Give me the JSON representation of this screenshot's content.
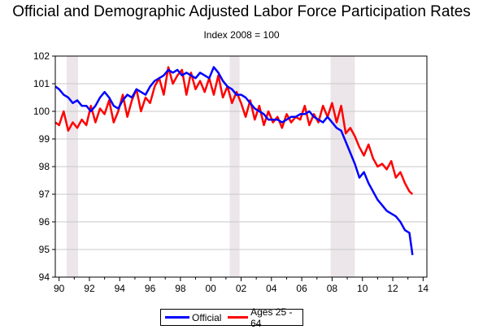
{
  "chart_data": {
    "type": "line",
    "title": "Official and Demographic Adjusted Labor Force Participation Rates",
    "subtitle": "Index 2008 = 100",
    "xlabel": "",
    "ylabel": "",
    "xlim": [
      1989.75,
      2014.25
    ],
    "ylim": [
      94,
      102
    ],
    "x_tick_labels": [
      "90",
      "92",
      "94",
      "96",
      "98",
      "00",
      "02",
      "04",
      "06",
      "08",
      "10",
      "12",
      "14"
    ],
    "x_ticks": [
      1990,
      1992,
      1994,
      1996,
      1998,
      2000,
      2002,
      2004,
      2006,
      2008,
      2010,
      2012,
      2014
    ],
    "y_ticks": [
      94,
      95,
      96,
      97,
      98,
      99,
      100,
      101,
      102
    ],
    "grid": "horizontal",
    "recessions": [
      [
        1990.5,
        1991.25
      ],
      [
        2001.25,
        2001.9
      ],
      [
        2007.9,
        2009.5
      ]
    ],
    "legend_position": "bottom-center",
    "series": [
      {
        "name": "Official",
        "color": "#0000ff",
        "x": [
          1989.75,
          1990.0,
          1990.3,
          1990.6,
          1990.9,
          1991.2,
          1991.5,
          1991.8,
          1992.1,
          1992.4,
          1992.7,
          1993.0,
          1993.3,
          1993.6,
          1993.9,
          1994.2,
          1994.5,
          1994.8,
          1995.1,
          1995.4,
          1995.7,
          1996.0,
          1996.3,
          1996.6,
          1996.9,
          1997.2,
          1997.5,
          1997.8,
          1998.1,
          1998.4,
          1998.7,
          1999.0,
          1999.3,
          1999.6,
          1999.9,
          2000.2,
          2000.5,
          2000.8,
          2001.1,
          2001.4,
          2001.7,
          2002.0,
          2002.3,
          2002.6,
          2002.9,
          2003.2,
          2003.5,
          2003.8,
          2004.1,
          2004.4,
          2004.7,
          2005.0,
          2005.3,
          2005.6,
          2005.9,
          2006.2,
          2006.5,
          2006.8,
          2007.1,
          2007.4,
          2007.7,
          2008.0,
          2008.3,
          2008.6,
          2008.9,
          2009.2,
          2009.5,
          2009.8,
          2010.1,
          2010.4,
          2010.7,
          2011.0,
          2011.3,
          2011.6,
          2011.9,
          2012.2,
          2012.5,
          2012.8,
          2013.1,
          2013.3
        ],
        "y": [
          100.9,
          100.8,
          100.6,
          100.5,
          100.3,
          100.4,
          100.2,
          100.2,
          100.0,
          100.2,
          100.5,
          100.7,
          100.5,
          100.2,
          100.1,
          100.4,
          100.6,
          100.5,
          100.8,
          100.7,
          100.6,
          100.9,
          101.1,
          101.2,
          101.3,
          101.5,
          101.4,
          101.5,
          101.3,
          101.4,
          101.3,
          101.2,
          101.4,
          101.3,
          101.2,
          101.6,
          101.4,
          101.1,
          100.9,
          100.8,
          100.6,
          100.6,
          100.5,
          100.3,
          100.1,
          100.0,
          99.9,
          99.7,
          99.7,
          99.7,
          99.6,
          99.7,
          99.8,
          99.8,
          99.9,
          99.9,
          100.0,
          99.8,
          99.7,
          99.6,
          99.8,
          99.6,
          99.4,
          99.3,
          98.9,
          98.5,
          98.1,
          97.6,
          97.8,
          97.4,
          97.1,
          96.8,
          96.6,
          96.4,
          96.3,
          96.2,
          96.0,
          95.7,
          95.6,
          94.8
        ]
      },
      {
        "name": "Ages 25 - 64",
        "color": "#ff0000",
        "x": [
          1989.75,
          1990.0,
          1990.3,
          1990.6,
          1990.9,
          1991.2,
          1991.5,
          1991.8,
          1992.1,
          1992.4,
          1992.7,
          1993.0,
          1993.3,
          1993.6,
          1993.9,
          1994.2,
          1994.5,
          1994.8,
          1995.1,
          1995.4,
          1995.7,
          1996.0,
          1996.3,
          1996.6,
          1996.9,
          1997.2,
          1997.5,
          1997.8,
          1998.1,
          1998.4,
          1998.7,
          1999.0,
          1999.3,
          1999.6,
          1999.9,
          2000.2,
          2000.5,
          2000.8,
          2001.1,
          2001.4,
          2001.7,
          2002.0,
          2002.3,
          2002.6,
          2002.9,
          2003.2,
          2003.5,
          2003.8,
          2004.1,
          2004.4,
          2004.7,
          2005.0,
          2005.3,
          2005.6,
          2005.9,
          2006.2,
          2006.5,
          2006.8,
          2007.1,
          2007.4,
          2007.7,
          2008.0,
          2008.3,
          2008.6,
          2008.9,
          2009.2,
          2009.5,
          2009.8,
          2010.1,
          2010.4,
          2010.7,
          2011.0,
          2011.3,
          2011.6,
          2011.9,
          2012.2,
          2012.5,
          2012.8,
          2013.1,
          2013.3
        ],
        "y": [
          99.6,
          99.5,
          100.0,
          99.3,
          99.6,
          99.4,
          99.7,
          99.5,
          100.2,
          99.6,
          100.1,
          99.9,
          100.4,
          99.6,
          100.0,
          100.6,
          99.8,
          100.4,
          100.8,
          100.0,
          100.5,
          100.3,
          100.9,
          101.2,
          100.6,
          101.6,
          101.0,
          101.3,
          101.5,
          100.6,
          101.4,
          100.8,
          101.1,
          100.7,
          101.2,
          100.6,
          101.3,
          100.5,
          100.9,
          100.3,
          100.7,
          100.3,
          99.8,
          100.4,
          99.7,
          100.2,
          99.5,
          100.0,
          99.6,
          99.8,
          99.4,
          99.9,
          99.6,
          99.8,
          99.7,
          100.2,
          99.5,
          99.9,
          99.6,
          100.2,
          99.8,
          100.3,
          99.6,
          100.2,
          99.2,
          99.4,
          99.1,
          98.7,
          98.4,
          98.8,
          98.3,
          98.0,
          98.1,
          97.9,
          98.2,
          97.6,
          97.8,
          97.4,
          97.1,
          97.0
        ]
      }
    ]
  }
}
